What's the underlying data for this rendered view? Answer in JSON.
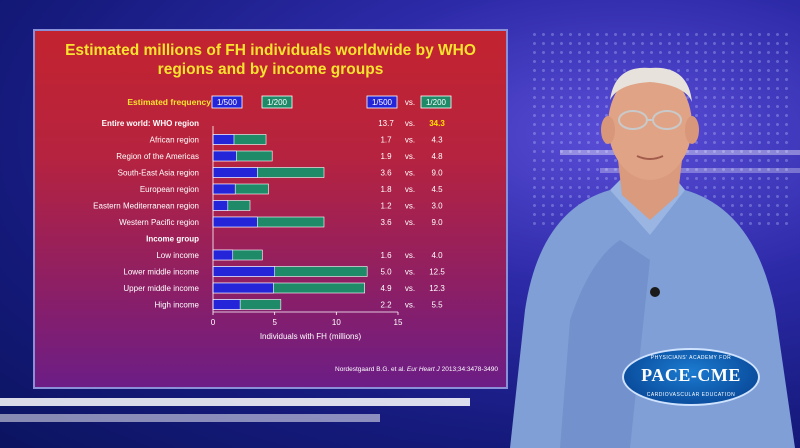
{
  "slide": {
    "title": "Estimated millions of FH individuals worldwide by WHO regions and by income groups",
    "citation_authors": "Nordestgaard B.G. et al.",
    "citation_journal": "Eur Heart J",
    "citation_ref": "2013;34:3478-3490"
  },
  "logo": {
    "top_text": "PHYSICIANS' ACADEMY FOR",
    "main_text": "PACE-CME",
    "bottom_text": "CARDIOVASCULAR EDUCATION"
  },
  "colors": {
    "blue": "#2424d8",
    "green": "#1e8a68",
    "title_yellow": "#f8e32f",
    "highlight_yellow": "#ffe000"
  },
  "chart_data": {
    "type": "bar",
    "stacked": true,
    "header_label": "Estimated frequency",
    "legend": [
      "1/500",
      "1/200"
    ],
    "vs_label": "vs.",
    "xlabel": "Individuals with FH (millions)",
    "xlim": [
      0,
      15
    ],
    "xticks": [
      0,
      5,
      10,
      15
    ],
    "rows": [
      {
        "label": "Entire world: WHO region",
        "bold": true,
        "v500": 13.7,
        "v200": 34.3,
        "bar": false,
        "t500": "13.7",
        "t200": "34.3"
      },
      {
        "label": "African region",
        "bold": false,
        "v500": 1.7,
        "v200": 4.3,
        "bar": true,
        "t500": "1.7",
        "t200": "4.3"
      },
      {
        "label": "Region of the Americas",
        "bold": false,
        "v500": 1.9,
        "v200": 4.8,
        "bar": true,
        "t500": "1.9",
        "t200": "4.8"
      },
      {
        "label": "South-East Asia region",
        "bold": false,
        "v500": 3.6,
        "v200": 9.0,
        "bar": true,
        "t500": "3.6",
        "t200": "9.0"
      },
      {
        "label": "European region",
        "bold": false,
        "v500": 1.8,
        "v200": 4.5,
        "bar": true,
        "t500": "1.8",
        "t200": "4.5"
      },
      {
        "label": "Eastern Mediterranean region",
        "bold": false,
        "v500": 1.2,
        "v200": 3.0,
        "bar": true,
        "t500": "1.2",
        "t200": "3.0"
      },
      {
        "label": "Western Pacific region",
        "bold": false,
        "v500": 3.6,
        "v200": 9.0,
        "bar": true,
        "t500": "3.6",
        "t200": "9.0"
      },
      {
        "label": "Income group",
        "bold": true,
        "v500": null,
        "v200": null,
        "bar": false,
        "t500": "",
        "t200": ""
      },
      {
        "label": "Low income",
        "bold": false,
        "v500": 1.6,
        "v200": 4.0,
        "bar": true,
        "t500": "1.6",
        "t200": "4.0"
      },
      {
        "label": "Lower middle income",
        "bold": false,
        "v500": 5.0,
        "v200": 12.5,
        "bar": true,
        "t500": "5.0",
        "t200": "12.5"
      },
      {
        "label": "Upper middle income",
        "bold": false,
        "v500": 4.9,
        "v200": 12.3,
        "bar": true,
        "t500": "4.9",
        "t200": "12.3"
      },
      {
        "label": "High income",
        "bold": false,
        "v500": 2.2,
        "v200": 5.5,
        "bar": true,
        "t500": "2.2",
        "t200": "5.5"
      }
    ]
  }
}
